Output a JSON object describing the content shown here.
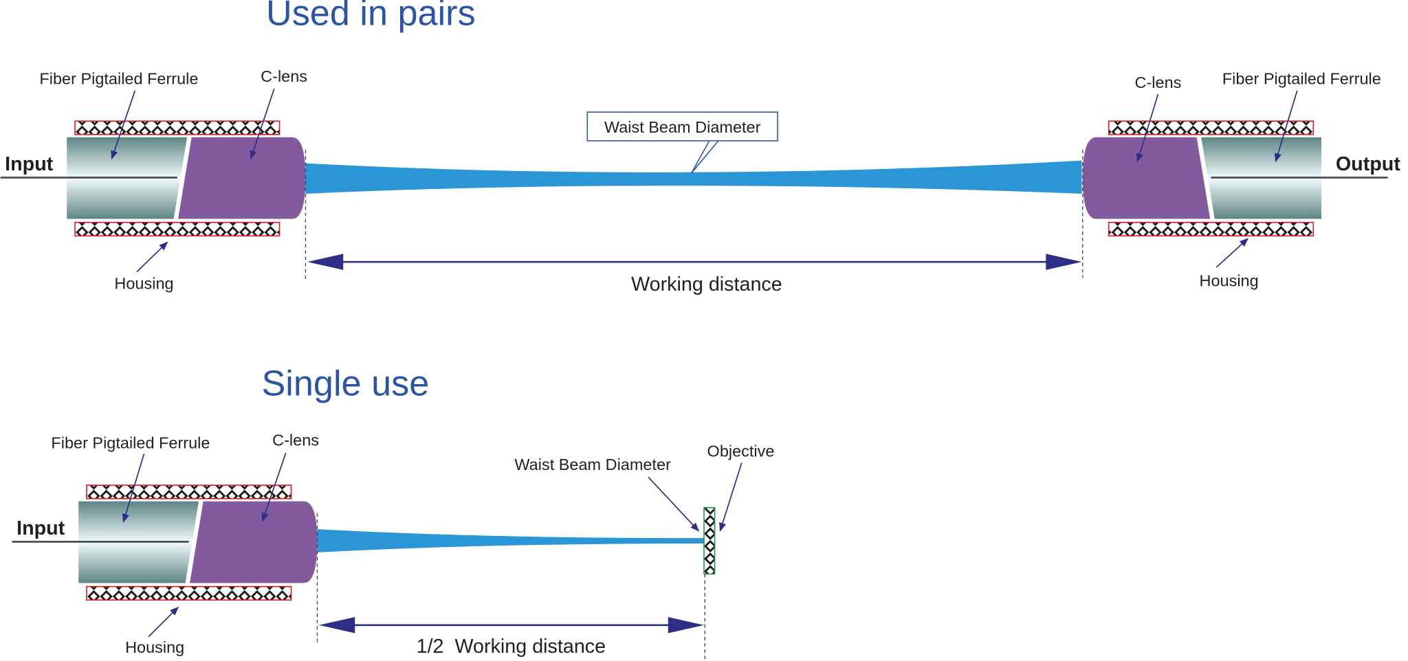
{
  "pairs": {
    "title": "Used in pairs",
    "input": "Input",
    "output": "Output",
    "left_ferrule": "Fiber Pigtailed Ferrule",
    "left_lens": "C-lens",
    "left_housing": "Housing",
    "right_lens": "C-lens",
    "right_ferrule": "Fiber Pigtailed Ferrule",
    "right_housing": "Housing",
    "waist": "Waist Beam Diameter",
    "distance": "Working distance"
  },
  "single": {
    "title": "Single use",
    "input": "Input",
    "ferrule": "Fiber Pigtailed Ferrule",
    "lens": "C-lens",
    "housing": "Housing",
    "waist": "Waist Beam Diameter",
    "objective": "Objective",
    "distance": "1/2  Working distance"
  }
}
